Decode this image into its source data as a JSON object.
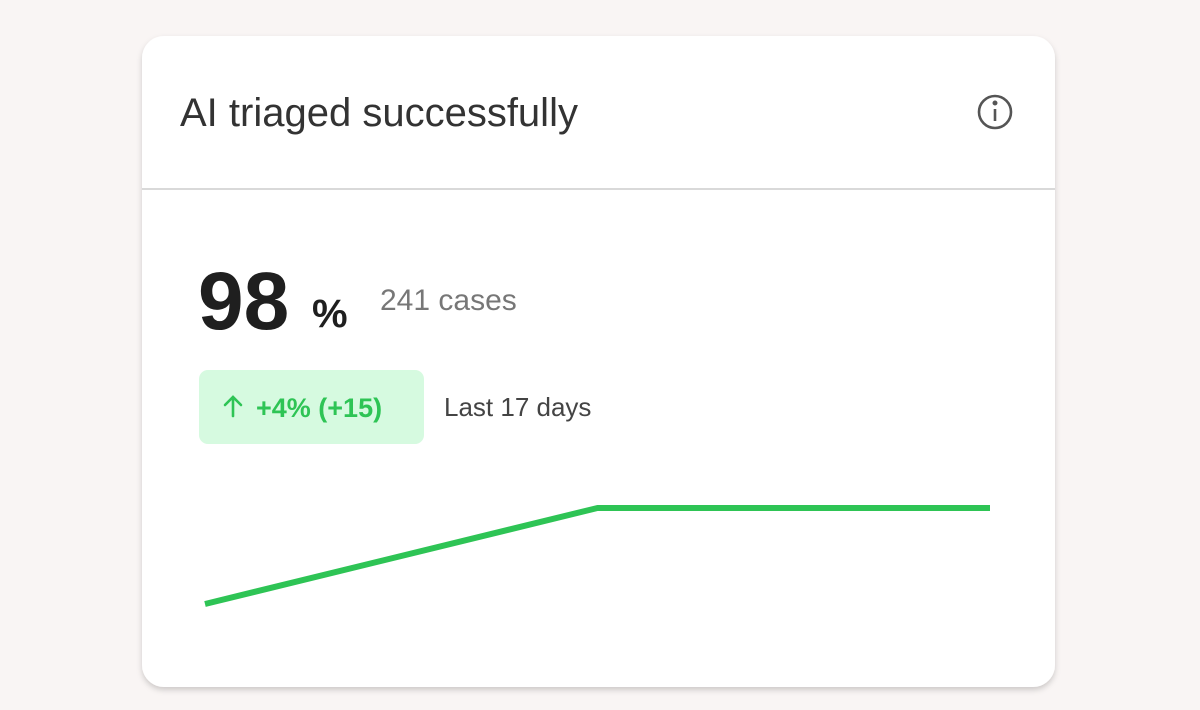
{
  "card": {
    "title": "AI triaged successfully",
    "metric": {
      "value": 98,
      "unit": "%",
      "count": "241 cases"
    },
    "change": {
      "label": "+4% (+15)",
      "period": "Last 17 days"
    },
    "sparkline": {
      "values": [
        94,
        98,
        98
      ],
      "color": "#2ec455"
    }
  }
}
